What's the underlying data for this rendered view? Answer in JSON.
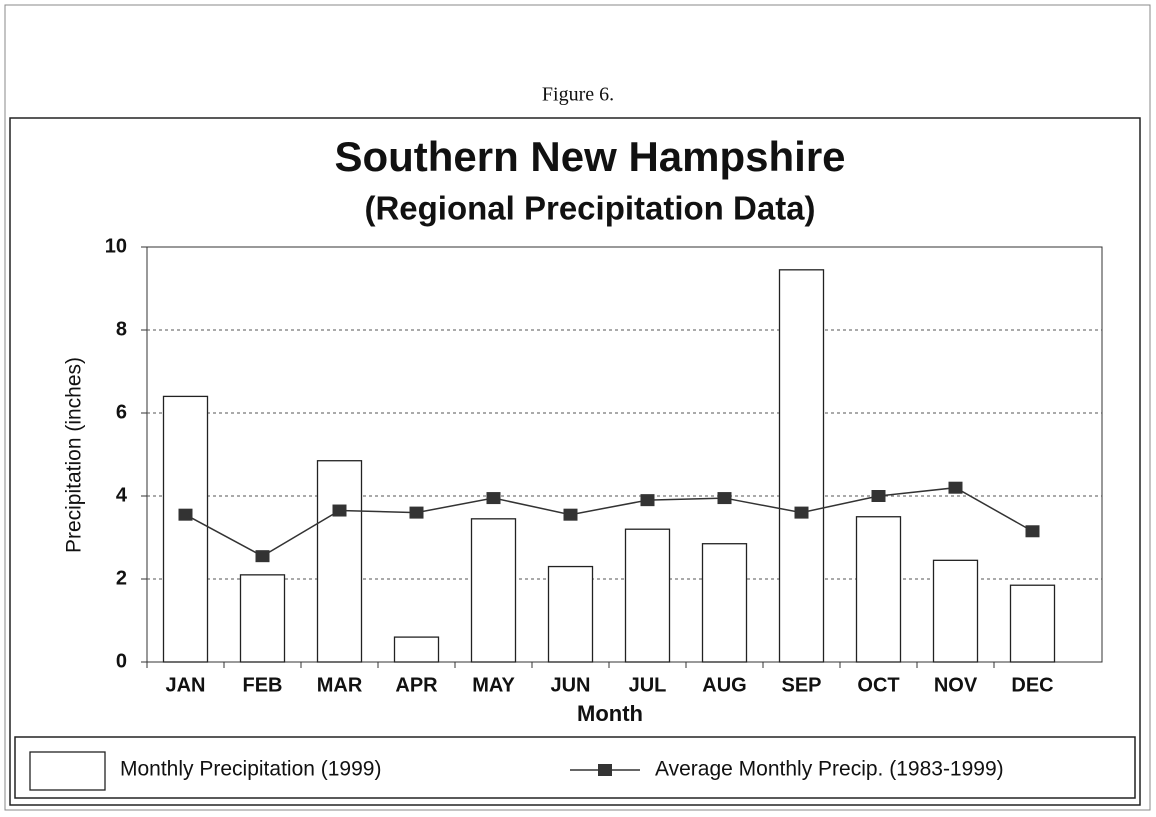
{
  "chart_data": {
    "type": "bar",
    "figure_label": "Figure 6.",
    "title": "Southern New Hampshire",
    "subtitle": "(Regional Precipitation Data)",
    "x_label": "Month",
    "y_label": "Precipitation (inches)",
    "categories": [
      "JAN",
      "FEB",
      "MAR",
      "APR",
      "MAY",
      "JUN",
      "JUL",
      "AUG",
      "SEP",
      "OCT",
      "NOV",
      "DEC"
    ],
    "series": [
      {
        "name": "Monthly Precipitation (1999)",
        "type": "bar",
        "color": "#ffffff",
        "values": [
          6.4,
          2.1,
          4.85,
          0.6,
          3.45,
          2.3,
          3.2,
          2.85,
          9.45,
          3.5,
          2.45,
          1.85
        ]
      },
      {
        "name": "Average Monthly Precip. (1983-1999)",
        "type": "line",
        "color": "#333333",
        "values": [
          3.55,
          2.55,
          3.65,
          3.6,
          3.95,
          3.55,
          3.9,
          3.95,
          3.6,
          4.0,
          4.2,
          3.15
        ]
      }
    ],
    "ylim": [
      0,
      10
    ],
    "yticks": [
      0,
      2,
      4,
      6,
      8,
      10
    ],
    "grid": true
  }
}
